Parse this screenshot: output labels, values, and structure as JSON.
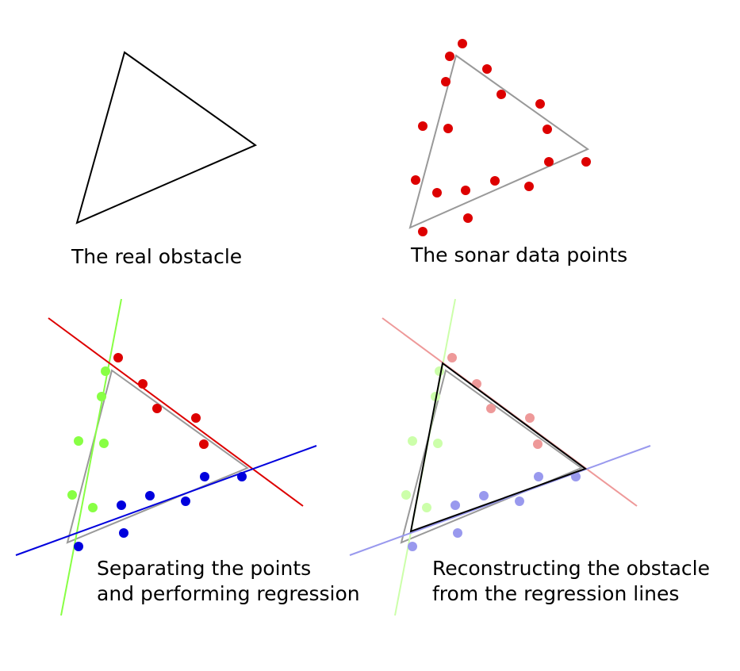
{
  "panels": [
    {
      "caption_lines": [
        "The real obstacle"
      ]
    },
    {
      "caption_lines": [
        "The sonar data points"
      ]
    },
    {
      "caption_lines": [
        "Separating the points",
        "and performing regression"
      ]
    },
    {
      "caption_lines": [
        "Reconstructing the obstacle",
        "from the regression lines"
      ]
    }
  ],
  "colors": {
    "obstacle_outline": "#000000",
    "obstacle_reference": "#999999",
    "sonar_points": "#dd0000",
    "group_red": "#dd0000",
    "group_green": "#88ff44",
    "group_blue": "#0000dd",
    "faded_red": "#ee9999",
    "faded_green": "#ccffaa",
    "faded_blue": "#9999ee"
  }
}
